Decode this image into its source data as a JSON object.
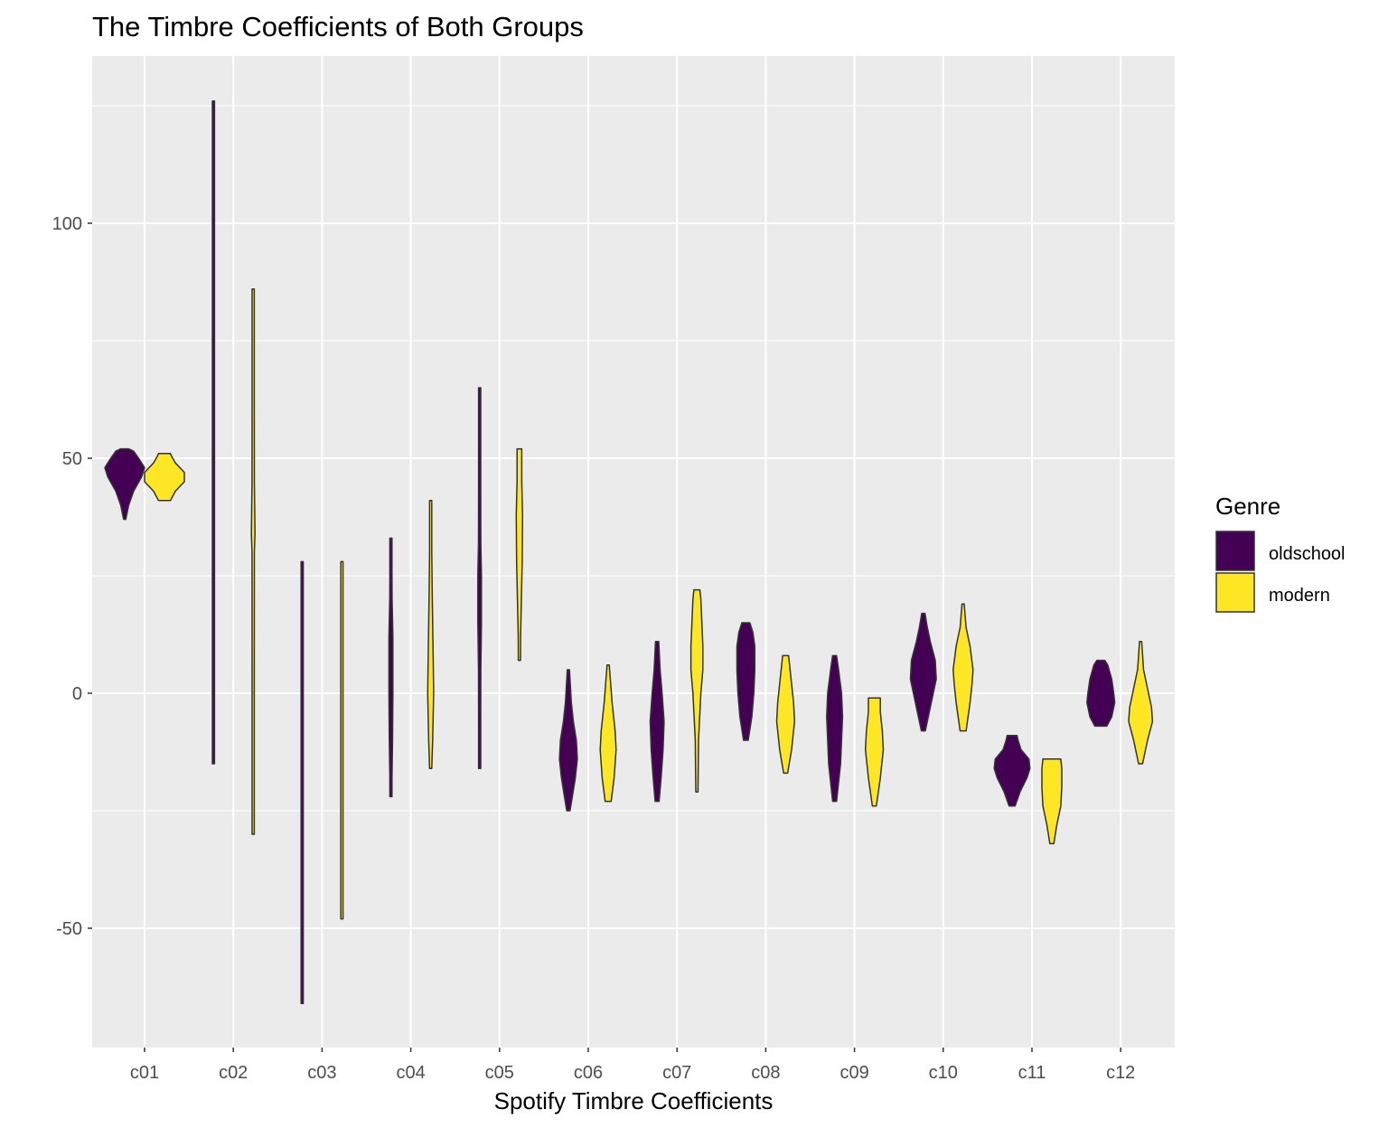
{
  "chart_data": {
    "type": "violin",
    "title": "The Timbre Coefficients of Both Groups",
    "xlabel": "Spotify Timbre Coefficients",
    "ylabel": "",
    "categories": [
      "c01",
      "c02",
      "c03",
      "c04",
      "c05",
      "c06",
      "c07",
      "c08",
      "c09",
      "c10",
      "c11",
      "c12"
    ],
    "y_ticks": [
      -50,
      0,
      50,
      100
    ],
    "ylim": [
      -75,
      135
    ],
    "grid": true,
    "legend": {
      "title": "Genre",
      "placement": "right"
    },
    "series": [
      {
        "name": "oldschool",
        "color": "#440154",
        "violins": [
          {
            "min": 37,
            "max": 52,
            "profile": [
              [
                37,
                0.05
              ],
              [
                40,
                0.2
              ],
              [
                43,
                0.45
              ],
              [
                46,
                0.85
              ],
              [
                48,
                1.0
              ],
              [
                50,
                0.7
              ],
              [
                51.5,
                0.45
              ],
              [
                52,
                0.2
              ]
            ]
          },
          {
            "min": -15,
            "max": 126,
            "profile": [
              [
                -15,
                0.012
              ],
              [
                0,
                0.02
              ],
              [
                3,
                0.04
              ],
              [
                40,
                0.035
              ],
              [
                100,
                0.035
              ],
              [
                105,
                0.03
              ],
              [
                112,
                0.015
              ],
              [
                126,
                0.008
              ]
            ]
          },
          {
            "min": -66,
            "max": 28,
            "profile": [
              [
                -66,
                0.01
              ],
              [
                -52,
                0.025
              ],
              [
                -50,
                0.03
              ],
              [
                0,
                0.03
              ],
              [
                20,
                0.03
              ],
              [
                22,
                0.02
              ],
              [
                28,
                0.01
              ]
            ]
          },
          {
            "min": -22,
            "max": 33,
            "profile": [
              [
                -22,
                0.03
              ],
              [
                -18,
                0.05
              ],
              [
                -10,
                0.08
              ],
              [
                0,
                0.1
              ],
              [
                12,
                0.1
              ],
              [
                20,
                0.06
              ],
              [
                25,
                0.04
              ],
              [
                33,
                0.03
              ]
            ]
          },
          {
            "min": -16,
            "max": 65,
            "profile": [
              [
                -16,
                0.015
              ],
              [
                -5,
                0.03
              ],
              [
                5,
                0.06
              ],
              [
                15,
                0.09
              ],
              [
                25,
                0.09
              ],
              [
                32,
                0.06
              ],
              [
                45,
                0.03
              ],
              [
                52,
                0.02
              ],
              [
                65,
                0.012
              ]
            ]
          },
          {
            "min": -25,
            "max": 5,
            "profile": [
              [
                -25,
                0.08
              ],
              [
                -22,
                0.2
              ],
              [
                -18,
                0.35
              ],
              [
                -14,
                0.45
              ],
              [
                -10,
                0.4
              ],
              [
                -6,
                0.25
              ],
              [
                -2,
                0.15
              ],
              [
                5,
                0.05
              ]
            ]
          },
          {
            "min": -23,
            "max": 11,
            "profile": [
              [
                -23,
                0.1
              ],
              [
                -18,
                0.2
              ],
              [
                -12,
                0.3
              ],
              [
                -6,
                0.35
              ],
              [
                0,
                0.25
              ],
              [
                5,
                0.15
              ],
              [
                11,
                0.08
              ]
            ]
          },
          {
            "min": -10,
            "max": 15,
            "profile": [
              [
                -10,
                0.12
              ],
              [
                -5,
                0.3
              ],
              [
                0,
                0.4
              ],
              [
                5,
                0.45
              ],
              [
                10,
                0.45
              ],
              [
                13,
                0.35
              ],
              [
                15,
                0.2
              ]
            ]
          },
          {
            "min": -23,
            "max": 8,
            "profile": [
              [
                -23,
                0.1
              ],
              [
                -15,
                0.3
              ],
              [
                -10,
                0.35
              ],
              [
                -5,
                0.4
              ],
              [
                0,
                0.35
              ],
              [
                5,
                0.2
              ],
              [
                8,
                0.1
              ]
            ]
          },
          {
            "min": -8,
            "max": 17,
            "profile": [
              [
                -8,
                0.1
              ],
              [
                -4,
                0.3
              ],
              [
                0,
                0.5
              ],
              [
                3,
                0.65
              ],
              [
                7,
                0.6
              ],
              [
                11,
                0.35
              ],
              [
                14,
                0.2
              ],
              [
                17,
                0.08
              ]
            ]
          },
          {
            "min": -24,
            "max": -9,
            "profile": [
              [
                -24,
                0.15
              ],
              [
                -21,
                0.4
              ],
              [
                -18,
                0.75
              ],
              [
                -16,
                0.9
              ],
              [
                -14,
                0.85
              ],
              [
                -12,
                0.45
              ],
              [
                -10,
                0.3
              ],
              [
                -9,
                0.25
              ]
            ]
          },
          {
            "min": -7,
            "max": 7,
            "profile": [
              [
                -7,
                0.3
              ],
              [
                -5,
                0.55
              ],
              [
                -2,
                0.7
              ],
              [
                0,
                0.65
              ],
              [
                3,
                0.55
              ],
              [
                6,
                0.35
              ],
              [
                7,
                0.2
              ]
            ]
          }
        ]
      },
      {
        "name": "modern",
        "color": "#fde725",
        "violins": [
          {
            "min": 41,
            "max": 51,
            "profile": [
              [
                41,
                0.3
              ],
              [
                43,
                0.55
              ],
              [
                45,
                1.0
              ],
              [
                47,
                1.0
              ],
              [
                49,
                0.55
              ],
              [
                50.5,
                0.35
              ],
              [
                51,
                0.3
              ]
            ]
          },
          {
            "min": -30,
            "max": 86,
            "profile": [
              [
                -30,
                0.02
              ],
              [
                0,
                0.03
              ],
              [
                30,
                0.06
              ],
              [
                34,
                0.09
              ],
              [
                45,
                0.06
              ],
              [
                64,
                0.03
              ],
              [
                86,
                0.015
              ]
            ]
          },
          {
            "min": -48,
            "max": 28,
            "profile": [
              [
                -48,
                0.015
              ],
              [
                -32,
                0.03
              ],
              [
                -30,
                0.05
              ],
              [
                0,
                0.05
              ],
              [
                20,
                0.04
              ],
              [
                22,
                0.03
              ],
              [
                28,
                0.015
              ]
            ]
          },
          {
            "min": -16,
            "max": 41,
            "profile": [
              [
                -16,
                0.05
              ],
              [
                -10,
                0.1
              ],
              [
                0,
                0.15
              ],
              [
                10,
                0.12
              ],
              [
                20,
                0.08
              ],
              [
                30,
                0.04
              ],
              [
                41,
                0.02
              ]
            ]
          },
          {
            "min": 7,
            "max": 52,
            "profile": [
              [
                7,
                0.04
              ],
              [
                12,
                0.06
              ],
              [
                20,
                0.1
              ],
              [
                28,
                0.14
              ],
              [
                38,
                0.16
              ],
              [
                45,
                0.12
              ],
              [
                52,
                0.12
              ]
            ]
          },
          {
            "min": -23,
            "max": 6,
            "profile": [
              [
                -23,
                0.15
              ],
              [
                -18,
                0.3
              ],
              [
                -12,
                0.4
              ],
              [
                -8,
                0.35
              ],
              [
                -2,
                0.2
              ],
              [
                6,
                0.05
              ]
            ]
          },
          {
            "min": -21,
            "max": 22,
            "profile": [
              [
                -21,
                0.03
              ],
              [
                -10,
                0.08
              ],
              [
                0,
                0.2
              ],
              [
                5,
                0.3
              ],
              [
                10,
                0.3
              ],
              [
                15,
                0.25
              ],
              [
                20,
                0.2
              ],
              [
                22,
                0.15
              ]
            ]
          },
          {
            "min": -17,
            "max": 8,
            "profile": [
              [
                -17,
                0.1
              ],
              [
                -12,
                0.3
              ],
              [
                -6,
                0.45
              ],
              [
                -2,
                0.4
              ],
              [
                2,
                0.3
              ],
              [
                8,
                0.15
              ]
            ]
          },
          {
            "min": -24,
            "max": -1,
            "profile": [
              [
                -24,
                0.1
              ],
              [
                -18,
                0.3
              ],
              [
                -12,
                0.45
              ],
              [
                -8,
                0.4
              ],
              [
                -4,
                0.3
              ],
              [
                -1,
                0.3
              ]
            ]
          },
          {
            "min": -8,
            "max": 19,
            "profile": [
              [
                -8,
                0.15
              ],
              [
                -2,
                0.35
              ],
              [
                2,
                0.45
              ],
              [
                5,
                0.5
              ],
              [
                10,
                0.35
              ],
              [
                14,
                0.15
              ],
              [
                19,
                0.05
              ]
            ]
          },
          {
            "min": -32,
            "max": -14,
            "profile": [
              [
                -32,
                0.1
              ],
              [
                -28,
                0.25
              ],
              [
                -24,
                0.45
              ],
              [
                -20,
                0.5
              ],
              [
                -16,
                0.5
              ],
              [
                -14,
                0.45
              ]
            ]
          },
          {
            "min": -15,
            "max": 11,
            "profile": [
              [
                -15,
                0.1
              ],
              [
                -10,
                0.35
              ],
              [
                -6,
                0.6
              ],
              [
                -3,
                0.55
              ],
              [
                0,
                0.4
              ],
              [
                5,
                0.15
              ],
              [
                11,
                0.05
              ]
            ]
          }
        ]
      }
    ]
  }
}
